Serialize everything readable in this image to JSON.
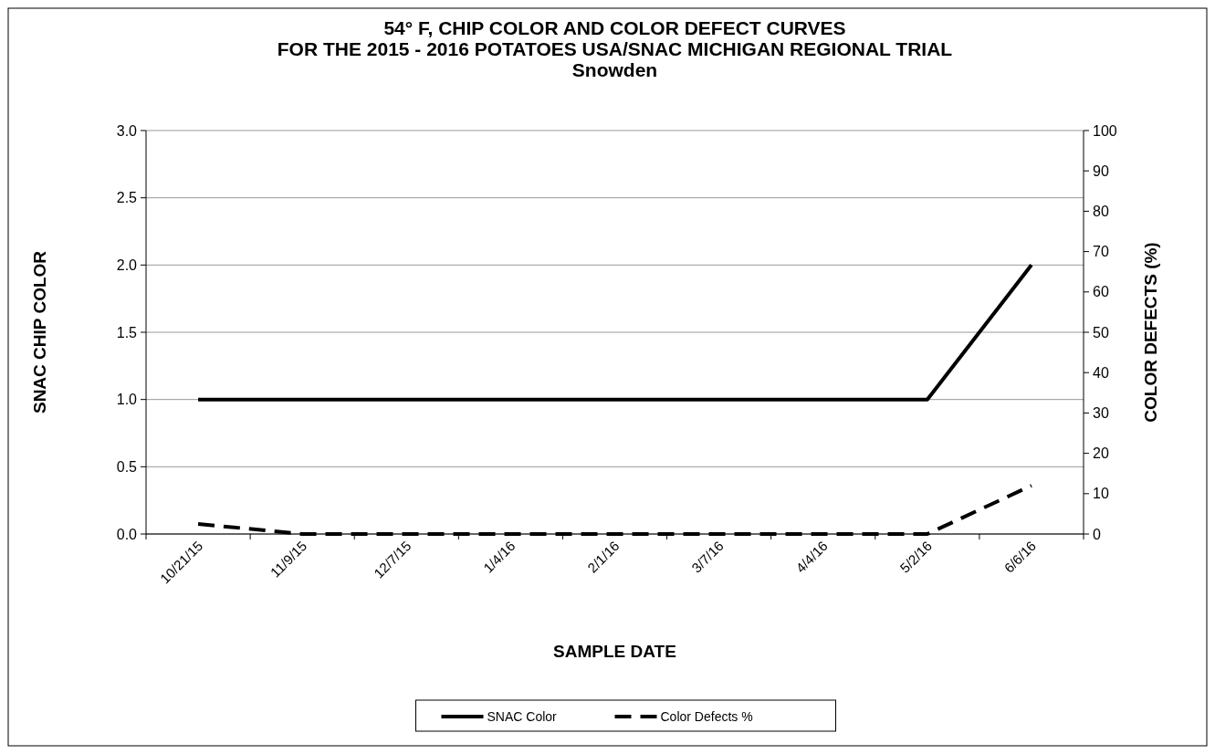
{
  "chart_data": {
    "type": "line",
    "title": "54° F, CHIP COLOR AND COLOR DEFECT CURVES\nFOR THE 2015 - 2016 POTATOES USA/SNAC MICHIGAN REGIONAL TRIAL\nSnowden",
    "xlabel": "SAMPLE DATE",
    "ylabel": "SNAC CHIP COLOR",
    "y2label": "COLOR DEFECTS (%)",
    "categories": [
      "10/21/15",
      "11/9/15",
      "12/7/15",
      "1/4/16",
      "2/1/16",
      "3/7/16",
      "4/4/16",
      "5/2/16",
      "6/6/16"
    ],
    "series": [
      {
        "name": "SNAC Color",
        "color": "#000000",
        "line_style": "solid",
        "values": [
          1.0,
          1.0,
          1.0,
          1.0,
          1.0,
          1.0,
          1.0,
          1.0,
          2.0
        ]
      },
      {
        "name": "Color Defects %",
        "color": "#000000",
        "line_style": "dashed",
        "axis": "y2",
        "values": [
          2.5,
          0,
          0,
          0,
          0,
          0,
          0,
          0,
          12
        ]
      }
    ],
    "ylim": [
      0,
      3
    ],
    "yticks": [
      {
        "value": 0,
        "label": "0.0"
      },
      {
        "value": 0.5,
        "label": "0.5"
      },
      {
        "value": 1,
        "label": "1.0"
      },
      {
        "value": 1.5,
        "label": "1.5"
      },
      {
        "value": 2,
        "label": "2.0"
      },
      {
        "value": 2.5,
        "label": "2.5"
      },
      {
        "value": 3,
        "label": "3.0"
      }
    ],
    "y2lim": [
      0,
      100
    ],
    "y2ticks": [
      0,
      10,
      20,
      30,
      40,
      50,
      60,
      70,
      80,
      90,
      100
    ],
    "grid": "y",
    "legend": "bottom"
  }
}
